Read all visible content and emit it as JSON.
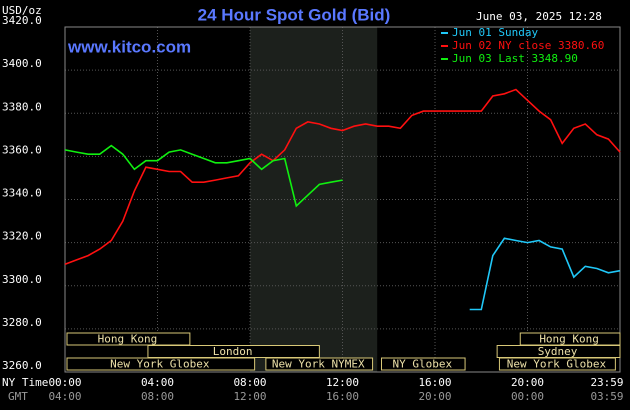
{
  "chart_data": {
    "type": "line",
    "title": "24 Hour Spot Gold (Bid)",
    "y_unit": "USD/oz",
    "timestamp": "June 03, 2025 12:28",
    "source": "www.kitco.com",
    "x_label": "NY Time",
    "x2_label": "GMT",
    "x": [
      0,
      0.5,
      1,
      1.5,
      2,
      2.5,
      3,
      3.5,
      4,
      4.5,
      5,
      5.5,
      6,
      6.5,
      7,
      7.5,
      8,
      8.5,
      9,
      9.5,
      10,
      10.5,
      11,
      11.5,
      12,
      12.5,
      13,
      13.5,
      14,
      14.5,
      15,
      15.5,
      16,
      16.5,
      17,
      17.5,
      18,
      18.5,
      19,
      19.5,
      20,
      20.5,
      21,
      21.5,
      22,
      22.5,
      23,
      23.5,
      24
    ],
    "xlim": [
      0,
      24
    ],
    "xticks": [
      {
        "value": 0,
        "label": "00:00"
      },
      {
        "value": 4,
        "label": "04:00"
      },
      {
        "value": 8,
        "label": "08:00"
      },
      {
        "value": 12,
        "label": "12:00"
      },
      {
        "value": 16,
        "label": "16:00"
      },
      {
        "value": 20,
        "label": "20:00"
      },
      {
        "value": 24,
        "label": "23:59"
      }
    ],
    "x2ticks": [
      "04:00",
      "08:00",
      "12:00",
      "16:00",
      "20:00",
      "00:00",
      "03:59"
    ],
    "ylim": [
      3260,
      3420
    ],
    "yticks": [
      {
        "value": 3260,
        "label": "3260.0"
      },
      {
        "value": 3280,
        "label": "3280.0"
      },
      {
        "value": 3300,
        "label": "3300.0"
      },
      {
        "value": 3320,
        "label": "3320.0"
      },
      {
        "value": 3340,
        "label": "3340.0"
      },
      {
        "value": 3360,
        "label": "3360.0"
      },
      {
        "value": 3380,
        "label": "3380.0"
      },
      {
        "value": 3400,
        "label": "3400.0"
      },
      {
        "value": 3420,
        "label": "3420.0"
      }
    ],
    "grid": true,
    "highlight": [
      8,
      13.5
    ],
    "series": [
      {
        "name": "Jun 01 Sunday",
        "color": "#20c8f8",
        "values": [
          null,
          null,
          null,
          null,
          null,
          null,
          null,
          null,
          null,
          null,
          null,
          null,
          null,
          null,
          null,
          null,
          null,
          null,
          null,
          null,
          null,
          null,
          null,
          null,
          null,
          null,
          null,
          null,
          null,
          null,
          null,
          null,
          null,
          null,
          null,
          3289,
          3289,
          3314,
          3322,
          3321,
          3320,
          3321,
          3318,
          3317,
          3304,
          3309,
          3308,
          3306,
          3307
        ]
      },
      {
        "name": "Jun 02 NY close 3380.60",
        "color": "#ff1010",
        "values": [
          3310,
          3312,
          3314,
          3317,
          3321,
          3330,
          3344,
          3355,
          3354,
          3353,
          3353,
          3348,
          3348,
          3349,
          3350,
          3351,
          3357,
          3361,
          3358,
          3363,
          3373,
          3376,
          3375,
          3373,
          3372,
          3374,
          3375,
          3374,
          3374,
          3373,
          3379,
          3381,
          3381,
          3381,
          3381,
          3381,
          3381,
          3388,
          3389,
          3391,
          3386,
          3381,
          3377,
          3366,
          3373,
          3375,
          3370,
          3368,
          3362
        ]
      },
      {
        "name": "Jun 03 Last 3348.90",
        "color": "#10f010",
        "values": [
          3363,
          3362,
          3361,
          3361,
          3365,
          3361,
          3354,
          3358,
          3358,
          3362,
          3363,
          3361,
          3359,
          3357,
          3357,
          3358,
          3359,
          3354,
          3358,
          3359,
          3337,
          3342,
          3347,
          3348,
          3349,
          null,
          null,
          null,
          null,
          null,
          null,
          null,
          null,
          null,
          null,
          null,
          null,
          null,
          null,
          null,
          null,
          null,
          null,
          null,
          null,
          null,
          null,
          null,
          null
        ]
      }
    ],
    "sessions": [
      {
        "label": "Hong Kong",
        "start": 0,
        "end": 5.4,
        "row": 0
      },
      {
        "label": "Hong Kong",
        "start": 19.6,
        "end": 24,
        "row": 0
      },
      {
        "label": "London",
        "start": 3.5,
        "end": 11,
        "row": 1
      },
      {
        "label": "Sydney",
        "start": 18.6,
        "end": 24,
        "row": 1
      },
      {
        "label": "New York Globex",
        "start": 0,
        "end": 8.2,
        "row": 2
      },
      {
        "label": "New York NYMEX",
        "start": 8.6,
        "end": 13.3,
        "row": 2
      },
      {
        "label": "NY Globex",
        "start": 13.6,
        "end": 17.3,
        "row": 2
      },
      {
        "label": "New York Globex",
        "start": 18.7,
        "end": 23.8,
        "row": 2
      }
    ]
  }
}
